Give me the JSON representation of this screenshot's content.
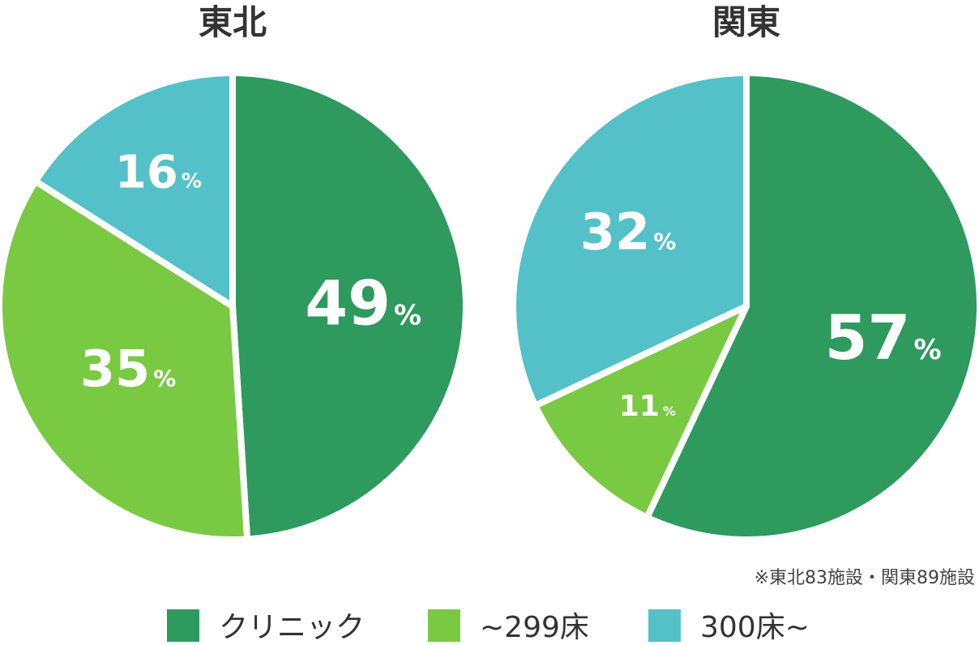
{
  "chart_data": [
    {
      "type": "pie",
      "title": "東北",
      "categories": [
        "クリニック",
        "~299床",
        "300床~"
      ],
      "values": [
        49,
        35,
        16
      ],
      "unit": "%"
    },
    {
      "type": "pie",
      "title": "関東",
      "categories": [
        "クリニック",
        "~299床",
        "300床~"
      ],
      "values": [
        57,
        11,
        32
      ],
      "unit": "%"
    }
  ],
  "colors": {
    "クリニック": "#2e9a5e",
    "~299床": "#7ac943",
    "300床~": "#54c1c9"
  },
  "legend": {
    "position": "bottom",
    "items": [
      "クリニック",
      "~299床",
      "300床~"
    ]
  },
  "note": "※東北83施設・関東89施設"
}
